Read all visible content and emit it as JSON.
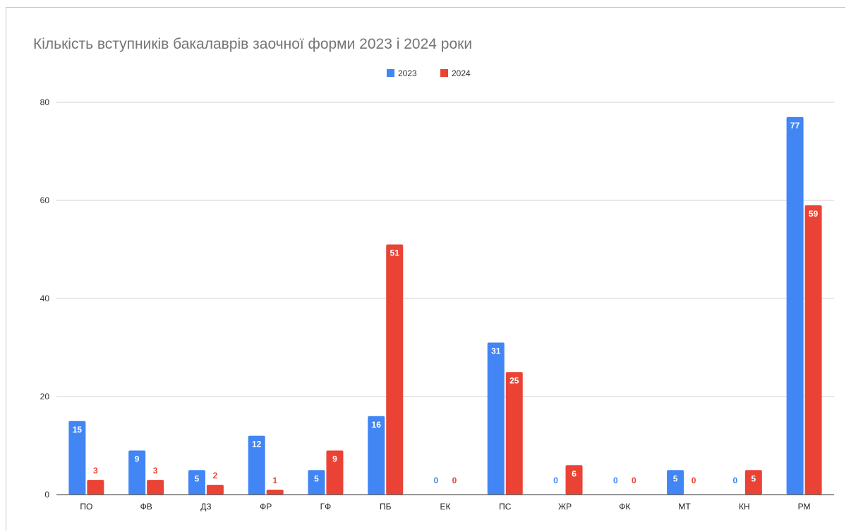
{
  "chart_data": {
    "type": "bar",
    "title": "Кількість вступників бакалаврів заочної форми 2023 і 2024 роки",
    "xlabel": "",
    "ylabel": "",
    "ylim": [
      0,
      80
    ],
    "yticks": [
      0,
      20,
      40,
      60,
      80
    ],
    "grid": true,
    "legend_position": "top",
    "categories": [
      "ПО",
      "ФВ",
      "ДЗ",
      "ФР",
      "ГФ",
      "ПБ",
      "ЕК",
      "ПС",
      "ЖР",
      "ФК",
      "МТ",
      "КН",
      "РМ"
    ],
    "series": [
      {
        "name": "2023",
        "color": "#4285f4",
        "values": [
          15,
          9,
          5,
          12,
          5,
          16,
          0,
          31,
          0,
          0,
          5,
          0,
          77
        ]
      },
      {
        "name": "2024",
        "color": "#ea4335",
        "values": [
          3,
          3,
          2,
          1,
          9,
          51,
          0,
          25,
          6,
          0,
          0,
          5,
          59
        ]
      }
    ]
  }
}
